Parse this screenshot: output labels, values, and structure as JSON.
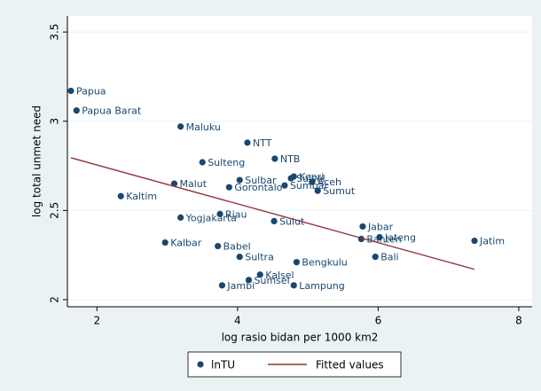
{
  "chart_data": {
    "type": "scatter",
    "x_label": "log rasio bidan per 1000 km2",
    "y_label": "log total unmet need",
    "xlim": [
      1.58,
      8.19
    ],
    "ylim": [
      1.96,
      3.59
    ],
    "xticks": [
      2,
      4,
      6,
      8
    ],
    "yticks": [
      2,
      2.5,
      3,
      3.5
    ],
    "grid": true,
    "legend": "bottom",
    "series": [
      {
        "name": "lnTU",
        "color": "#1a476f",
        "labels": [
          "Papua",
          "Papua Barat",
          "Maluku",
          "NTT",
          "NTB",
          "Sulteng",
          "Kepri",
          "Sulsel",
          "Aceh",
          "Sumbar",
          "Sumut",
          "Sulbar",
          "Malut",
          "Gorontalo",
          "Kaltim",
          "Yogjakarta",
          "Riau",
          "Sulut",
          "Jabar",
          "Banten",
          "Jateng",
          "Jatim",
          "Kalbar",
          "Babel",
          "Sultra",
          "Bali",
          "Bengkulu",
          "Kalsel",
          "Sumsel",
          "Jambi",
          "Lampung"
        ],
        "x": [
          1.63,
          1.71,
          3.19,
          4.14,
          4.53,
          3.5,
          4.8,
          4.76,
          5.06,
          4.67,
          5.14,
          4.03,
          3.1,
          3.88,
          2.34,
          3.19,
          3.75,
          4.52,
          5.78,
          5.76,
          6.02,
          7.37,
          2.97,
          3.72,
          4.03,
          5.96,
          4.84,
          4.32,
          4.16,
          3.78,
          4.8
        ],
        "values": [
          3.17,
          3.06,
          2.97,
          2.88,
          2.79,
          2.77,
          2.69,
          2.68,
          2.66,
          2.64,
          2.61,
          2.67,
          2.65,
          2.63,
          2.58,
          2.46,
          2.48,
          2.44,
          2.41,
          2.34,
          2.35,
          2.33,
          2.32,
          2.3,
          2.24,
          2.24,
          2.21,
          2.14,
          2.11,
          2.08,
          2.08
        ]
      },
      {
        "name": "Fitted values",
        "color": "#90353b",
        "type": "line",
        "x": [
          1.63,
          7.37
        ],
        "values": [
          2.795,
          2.17
        ]
      }
    ]
  }
}
